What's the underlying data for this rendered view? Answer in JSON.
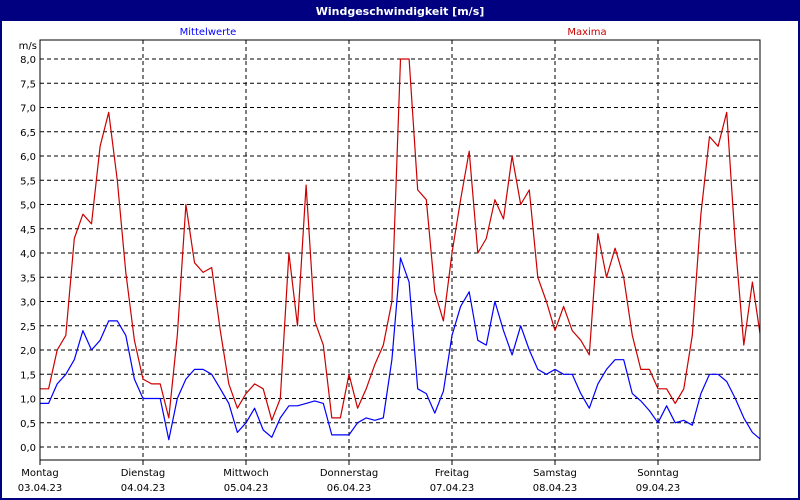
{
  "window": {
    "title": "Windgeschwindigkeit [m/s]"
  },
  "chart_data": {
    "type": "line",
    "title": "Windgeschwindigkeit [m/s]",
    "ylabel": "m/s",
    "xlabel": "",
    "ylim": [
      -0.25,
      8.4
    ],
    "yticks": [
      0,
      0.5,
      1,
      1.5,
      2,
      2.5,
      3,
      3.5,
      4,
      4.5,
      5,
      5.5,
      6,
      6.5,
      7,
      7.5,
      8
    ],
    "ytick_labels": [
      "0,0",
      "0,5",
      "1,0",
      "1,5",
      "2,0",
      "2,5",
      "3,0",
      "3,5",
      "4,0",
      "4,5",
      "5,0",
      "5,5",
      "6,0",
      "6,5",
      "7,0",
      "7,5",
      "8,0"
    ],
    "grid": true,
    "x_start": "03.04.23 00:00",
    "x_interval_hours": 2,
    "x_days": 7,
    "x_tick_labels": [
      {
        "day": "Montag",
        "date": "03.04.23"
      },
      {
        "day": "Dienstag",
        "date": "04.04.23"
      },
      {
        "day": "Mittwoch",
        "date": "05.04.23"
      },
      {
        "day": "Donnerstag",
        "date": "06.04.23"
      },
      {
        "day": "Freitag",
        "date": "07.04.23"
      },
      {
        "day": "Samstag",
        "date": "08.04.23"
      },
      {
        "day": "Sonntag",
        "date": "09.04.23"
      }
    ],
    "legend_placement": "top",
    "series": [
      {
        "name": "Mittelwerte",
        "color": "#0000ff",
        "values": [
          0.9,
          0.9,
          1.3,
          1.5,
          1.8,
          2.4,
          2.0,
          2.2,
          2.6,
          2.6,
          2.3,
          1.4,
          1.0,
          1.0,
          1.0,
          0.15,
          1.0,
          1.4,
          1.6,
          1.6,
          1.5,
          1.2,
          0.9,
          0.3,
          0.5,
          0.8,
          0.35,
          0.2,
          0.6,
          0.85,
          0.85,
          0.9,
          0.95,
          0.9,
          0.25,
          0.25,
          0.25,
          0.5,
          0.6,
          0.55,
          0.6,
          1.8,
          3.9,
          3.4,
          1.2,
          1.1,
          0.7,
          1.15,
          2.3,
          2.9,
          3.2,
          2.2,
          2.1,
          3.0,
          2.4,
          1.9,
          2.5,
          2.0,
          1.6,
          1.5,
          1.6,
          1.5,
          1.5,
          1.1,
          0.8,
          1.3,
          1.6,
          1.8,
          1.8,
          1.1,
          0.95,
          0.75,
          0.5,
          0.85,
          0.5,
          0.55,
          0.45,
          1.1,
          1.5,
          1.5,
          1.35,
          1.0,
          0.6,
          0.3,
          0.15
        ]
      },
      {
        "name": "Maxima",
        "color": "#cc0000",
        "values": [
          1.2,
          1.2,
          2.0,
          2.3,
          4.3,
          4.8,
          4.6,
          6.2,
          6.9,
          5.5,
          3.6,
          2.2,
          1.4,
          1.3,
          1.3,
          0.6,
          2.3,
          5.0,
          3.8,
          3.6,
          3.7,
          2.4,
          1.3,
          0.8,
          1.1,
          1.3,
          1.2,
          0.55,
          1.0,
          4.0,
          2.5,
          5.4,
          2.6,
          2.1,
          0.6,
          0.6,
          1.5,
          0.8,
          1.2,
          1.7,
          2.1,
          3.0,
          8.0,
          8.0,
          5.3,
          5.1,
          3.2,
          2.6,
          4.0,
          5.1,
          6.1,
          4.0,
          4.3,
          5.1,
          4.7,
          6.0,
          5.0,
          5.3,
          3.5,
          3.0,
          2.4,
          2.9,
          2.4,
          2.2,
          1.9,
          4.4,
          3.5,
          4.1,
          3.5,
          2.3,
          1.6,
          1.6,
          1.2,
          1.2,
          0.9,
          1.2,
          2.3,
          4.8,
          6.4,
          6.2,
          6.9,
          4.2,
          2.1,
          3.4,
          2.2
        ]
      }
    ]
  }
}
